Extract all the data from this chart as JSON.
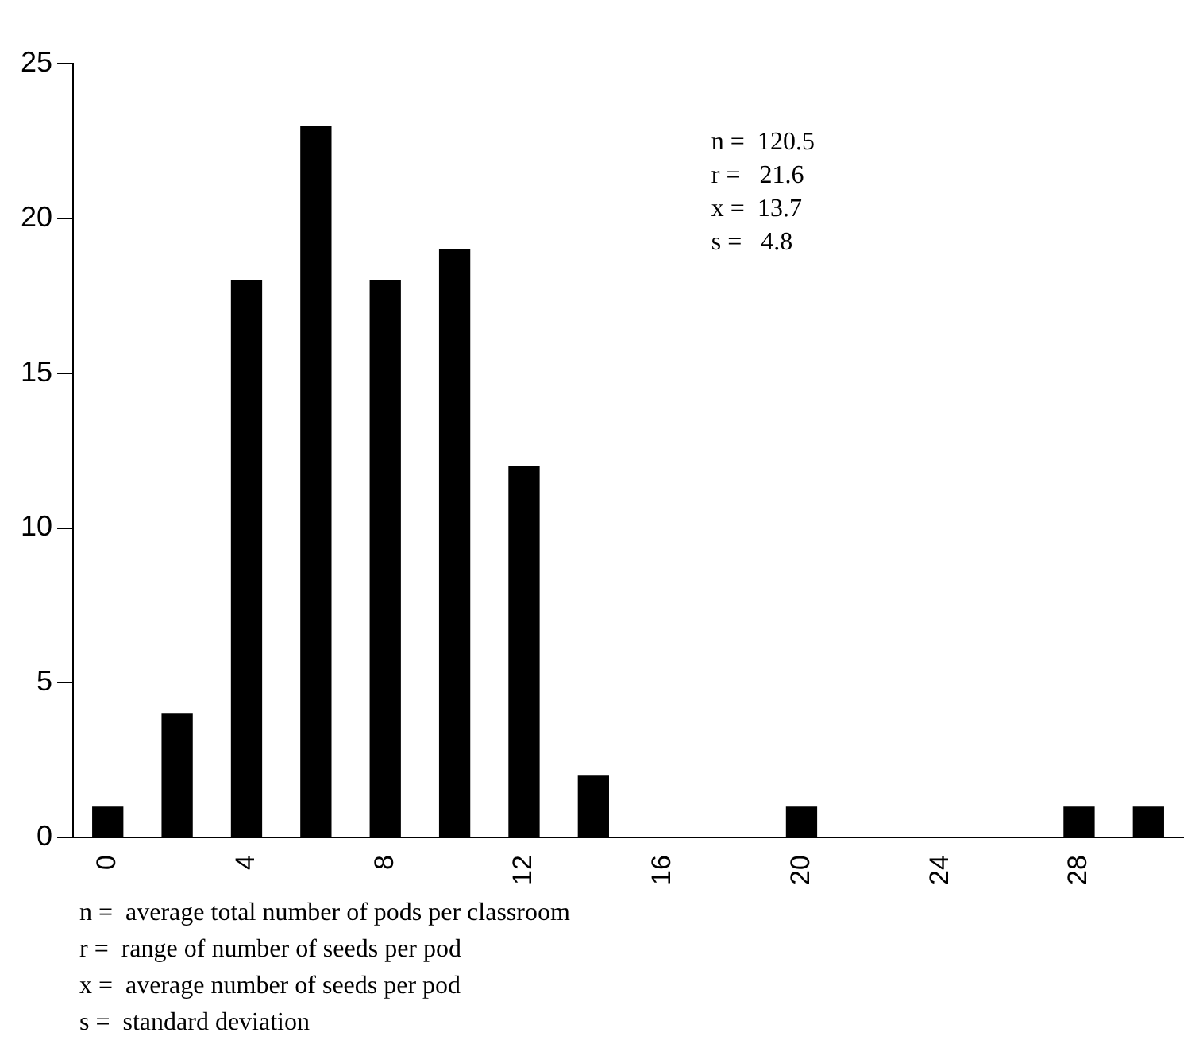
{
  "chart_data": {
    "type": "bar",
    "categories": [
      "0",
      null,
      "4",
      null,
      "8",
      null,
      "12",
      null,
      "16",
      null,
      "20",
      null,
      "24",
      null,
      "28",
      null
    ],
    "values": [
      1,
      4,
      18,
      23,
      18,
      19,
      12,
      2,
      0,
      0,
      1,
      0,
      0,
      0,
      1,
      1
    ],
    "color": "#000000",
    "ylim": [
      0,
      25
    ],
    "yticks": [
      0,
      5,
      10,
      15,
      20,
      25
    ],
    "grid": false,
    "legend": false,
    "annotations": [
      "n =  120.5\nr =   21.6\nx =  13.7\ns =   4.8",
      "n =  average total number of pods per classroom\nr =  range of number of seeds per pod\nx =  average number of seeds per pod\ns =  standard deviation"
    ]
  }
}
